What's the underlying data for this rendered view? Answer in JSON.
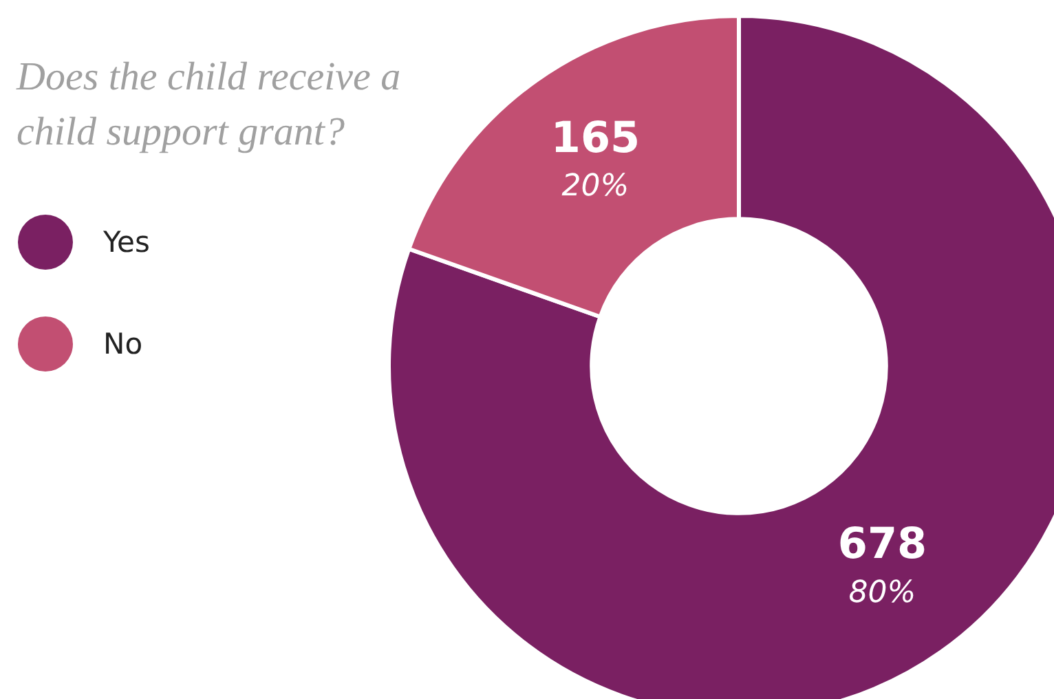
{
  "chart_data": {
    "type": "donut",
    "title": "Does the child receive a child support grant?",
    "categories": [
      "Yes",
      "No"
    ],
    "values": [
      678,
      165
    ],
    "colors": [
      "#7a2062",
      "#c24f72"
    ],
    "value_labels": [
      "678\n80%",
      "165\n20%"
    ],
    "legend": "top left"
  }
}
